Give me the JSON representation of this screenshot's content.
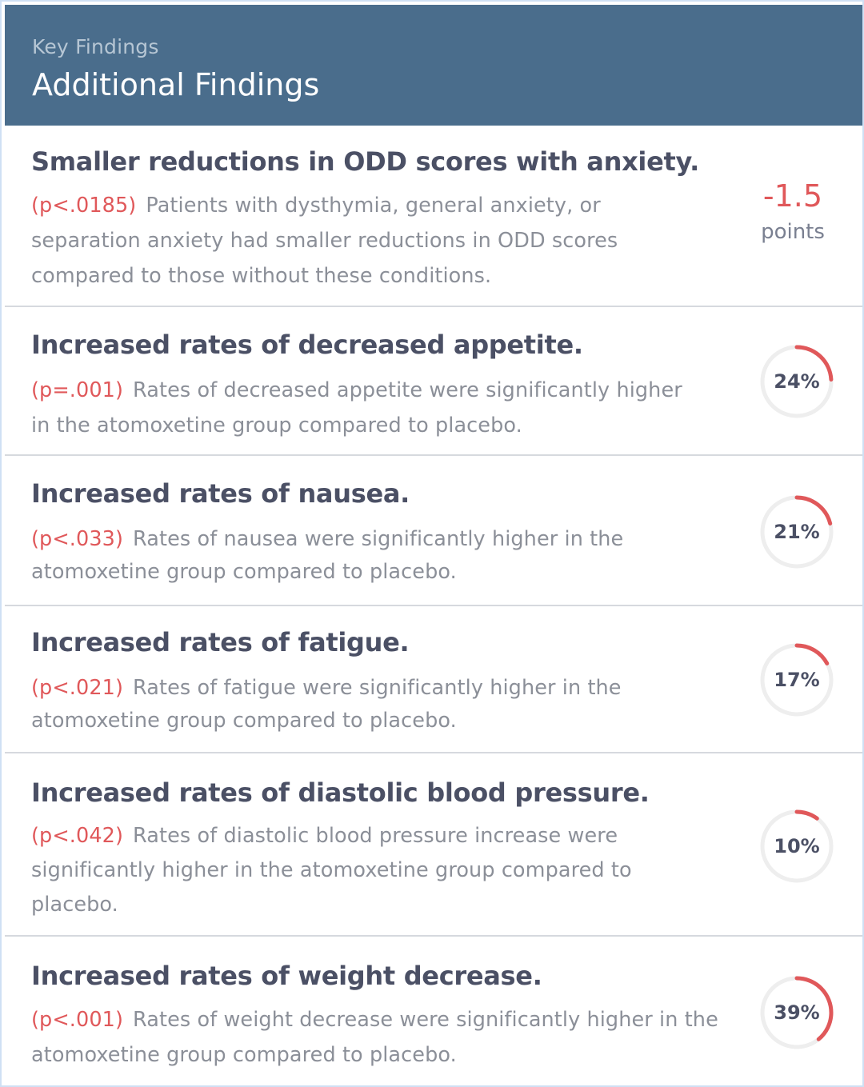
{
  "header": {
    "eyebrow": "Key Findings",
    "title": "Additional Findings"
  },
  "colors": {
    "header_bg": "#4a6d8c",
    "accent_red": "#e0585a",
    "ring_track": "#eeeeee"
  },
  "findings": [
    {
      "title": "Smaller reductions in ODD scores with anxiety.",
      "p_value": "(p<.0185)",
      "description": "Patients with dysthymia, general anxiety, or separation anxiety had smaller reductions in ODD scores compared to those without these conditions.",
      "metric_value": "-1.5",
      "metric_unit": "points"
    },
    {
      "title": "Increased rates of decreased appetite.",
      "p_value": "(p=.001)",
      "description": "Rates of decreased appetite were significantly higher in the atomoxetine group compared to placebo.",
      "percent_label": "24%",
      "percent": 24
    },
    {
      "title": "Increased rates of nausea.",
      "p_value": "(p<.033)",
      "description": "Rates of nausea were significantly higher in the atomoxetine group compared to placebo.",
      "percent_label": "21%",
      "percent": 21
    },
    {
      "title": "Increased rates of fatigue.",
      "p_value": "(p<.021)",
      "description": "Rates of fatigue were significantly higher in the atomoxetine group compared to placebo.",
      "percent_label": "17%",
      "percent": 17
    },
    {
      "title": "Increased rates of diastolic blood pressure.",
      "p_value": "(p<.042)",
      "description": "Rates of diastolic blood pressure increase were significantly higher in the atomoxetine group compared to placebo.",
      "percent_label": "10%",
      "percent": 10
    },
    {
      "title": "Increased rates of weight decrease.",
      "p_value": "(p<.001)",
      "description": "Rates of weight decrease were significantly higher in the atomoxetine group compared to placebo.",
      "percent_label": "39%",
      "percent": 39
    }
  ]
}
